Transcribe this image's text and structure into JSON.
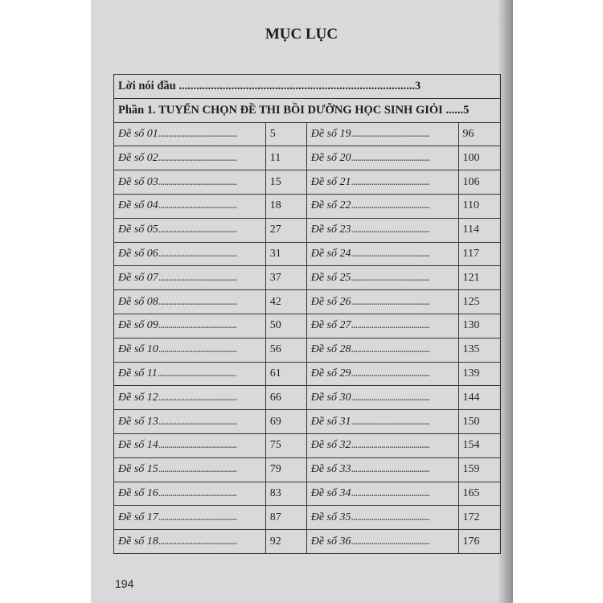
{
  "title": "MỤC LỤC",
  "intro": {
    "label": "Lời nói đầu",
    "page": "3"
  },
  "part": {
    "label": "Phần 1. TUYỂN CHỌN ĐỀ THI BỒI DƯỠNG HỌC SINH GIỎI",
    "page": "5"
  },
  "entries_left": [
    {
      "label": "Đề số 01",
      "page": "5"
    },
    {
      "label": "Đề số 02",
      "page": "11"
    },
    {
      "label": "Đề số 03",
      "page": "15"
    },
    {
      "label": "Đề số 04",
      "page": "18"
    },
    {
      "label": "Đề số 05",
      "page": "27"
    },
    {
      "label": "Đề số 06",
      "page": "31"
    },
    {
      "label": "Đề số 07",
      "page": "37"
    },
    {
      "label": "Đề số 08",
      "page": "42"
    },
    {
      "label": "Đề số 09",
      "page": "50"
    },
    {
      "label": "Đề số 10",
      "page": "56"
    },
    {
      "label": "Đề số 11",
      "page": "61"
    },
    {
      "label": "Đề số 12",
      "page": "66"
    },
    {
      "label": "Đề số 13",
      "page": "69"
    },
    {
      "label": "Đề số 14",
      "page": "75"
    },
    {
      "label": "Đề số 15",
      "page": "79"
    },
    {
      "label": "Đề số 16",
      "page": "83"
    },
    {
      "label": "Đề số 17",
      "page": "87"
    },
    {
      "label": "Đề số 18",
      "page": "92"
    }
  ],
  "entries_right": [
    {
      "label": "Đề số 19",
      "page": "96"
    },
    {
      "label": "Đề số 20",
      "page": "100"
    },
    {
      "label": "Đề số 21",
      "page": "106"
    },
    {
      "label": "Đề số 22",
      "page": "110"
    },
    {
      "label": "Đề số 23",
      "page": "114"
    },
    {
      "label": "Đề số 24",
      "page": "117"
    },
    {
      "label": "Đề số 25",
      "page": "121"
    },
    {
      "label": "Đề số 26",
      "page": "125"
    },
    {
      "label": "Đề số 27",
      "page": "130"
    },
    {
      "label": "Đề số 28",
      "page": "135"
    },
    {
      "label": "Đề số 29",
      "page": "139"
    },
    {
      "label": "Đề số 30",
      "page": "144"
    },
    {
      "label": "Đề số 31",
      "page": "150"
    },
    {
      "label": "Đề số 32",
      "page": "154"
    },
    {
      "label": "Đề số 33",
      "page": "159"
    },
    {
      "label": "Đề số 34",
      "page": "165"
    },
    {
      "label": "Đề số 35",
      "page": "172"
    },
    {
      "label": "Đề số 36",
      "page": "176"
    }
  ],
  "page_number": "194"
}
